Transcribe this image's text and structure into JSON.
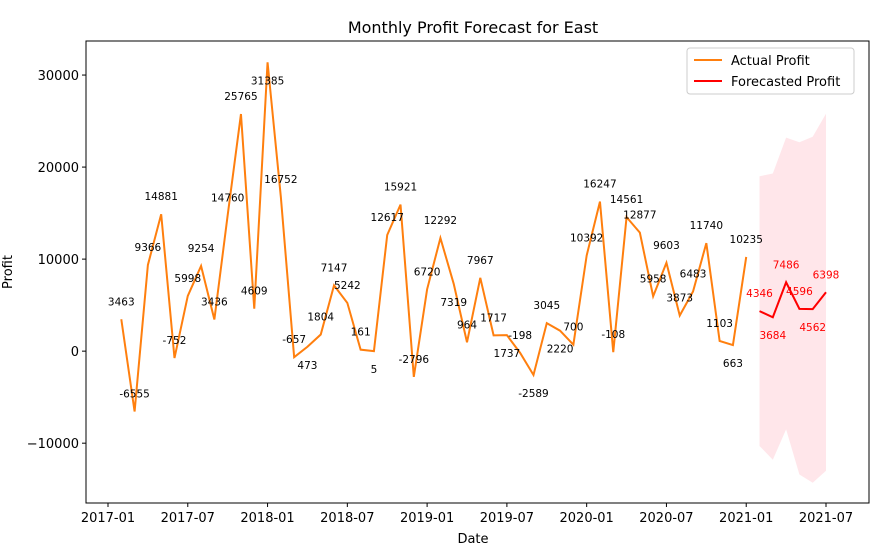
{
  "chart_data": {
    "type": "line",
    "title": "Monthly Profit Forecast for East",
    "xlabel": "Date",
    "ylabel": "Profit",
    "ylim": [
      -16500,
      33700
    ],
    "xlim": [
      "2016-12",
      "2021-08"
    ],
    "grid": false,
    "legend_placement": "top-right",
    "x_ticks": [
      "2017-01",
      "2017-07",
      "2018-01",
      "2018-07",
      "2019-01",
      "2019-07",
      "2020-01",
      "2020-07",
      "2021-01",
      "2021-07"
    ],
    "y_ticks": [
      -10000,
      0,
      10000,
      20000,
      30000
    ],
    "colors": {
      "actual": "#ff7f0e",
      "forecast": "#ff0000",
      "interval": "#ffc0cb"
    },
    "series": [
      {
        "name": "Actual Profit",
        "start": "2017-02",
        "values": [
          3463,
          -6555,
          9366,
          14881,
          -752,
          5998,
          9254,
          3436,
          14760,
          25765,
          4609,
          31385,
          16752,
          -657,
          473,
          1804,
          7147,
          5242,
          161,
          5,
          12617,
          15921,
          -2796,
          6720,
          12292,
          7319,
          964,
          7967,
          1717,
          1737,
          -198,
          -2589,
          3045,
          2220,
          700,
          10392,
          16247,
          -108,
          14561,
          12877,
          5958,
          9603,
          3873,
          6483,
          11740,
          1103,
          663,
          10235
        ]
      },
      {
        "name": "Forecasted Profit",
        "start": "2021-02",
        "values": [
          4346,
          3684,
          7486,
          4596,
          4562,
          6398
        ],
        "upper": [
          19000,
          19300,
          23200,
          22700,
          23300,
          25800
        ],
        "lower": [
          -10300,
          -11800,
          -8500,
          -13400,
          -14300,
          -13000
        ]
      }
    ]
  }
}
